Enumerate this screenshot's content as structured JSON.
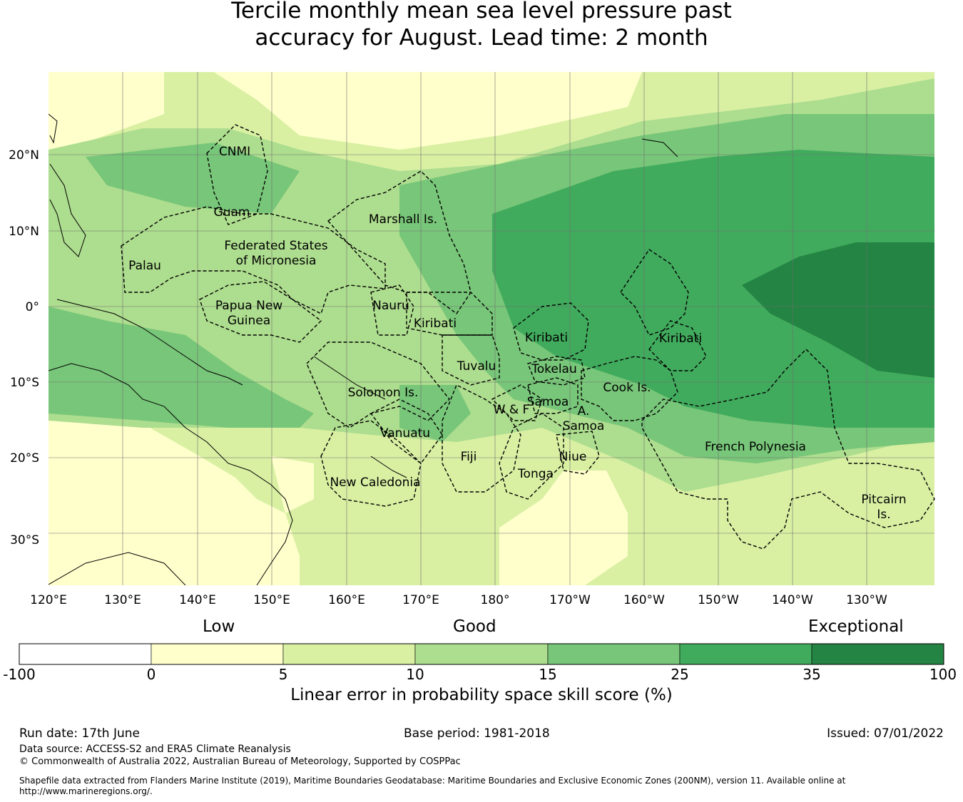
{
  "title": {
    "line1": "Tercile monthly mean sea level pressure past",
    "line2": "accuracy for August. Lead time: 2 month"
  },
  "map": {
    "lat_labels": [
      "20°N",
      "10°N",
      "0°",
      "10°S",
      "20°S",
      "30°S"
    ],
    "lon_labels": [
      "120°E",
      "130°E",
      "140°E",
      "150°E",
      "160°E",
      "170°E",
      "180°",
      "170°W",
      "160°W",
      "150°W",
      "140°W",
      "130°W"
    ],
    "regions": [
      "CNMI",
      "Guam",
      "Marshall Is.",
      "Federated States",
      "of Micronesia",
      "Palau",
      "Papua New",
      "Guinea",
      "Nauru",
      "Kiribati",
      "Kiribati",
      "Kiribati",
      "Tuvalu",
      "Tokelau",
      "Cook Is.",
      "Solomon Is.",
      "W & F",
      "Samoa",
      "A.",
      "Samoa",
      "Vanuatu",
      "Fiji",
      "Niue",
      "Tonga",
      "French Polynesia",
      "New Caledonia",
      "Pitcairn",
      "Is."
    ],
    "colors": {
      "class_0": "#ffffff",
      "class_1": "#ffffcc",
      "class_2": "#d9f0a3",
      "class_3": "#addd8e",
      "class_4": "#78c679",
      "class_5": "#41ab5d",
      "class_6": "#238443"
    }
  },
  "colorbar": {
    "categories": [
      "Low",
      "Good",
      "Exceptional"
    ],
    "ticks": [
      "-100",
      "0",
      "5",
      "10",
      "15",
      "25",
      "35",
      "100"
    ],
    "label": "Linear error in probability space skill score (%)"
  },
  "footer": {
    "run_date": "Run date: 17th June",
    "base_period": "Base period: 1981-2018",
    "issued": "Issued: 07/01/2022",
    "data_source": "Data source: ACCESS-S2 and ERA5 Climate Reanalysis",
    "copyright": "© Commonwealth of Australia 2022, Australian Bureau of Meteorology, Supported by COSPPac",
    "shapefile_line1": "Shapefile data extracted from Flanders Marine Institute (2019), Maritime Boundaries Geodatabase: Maritime Boundaries and Exclusive Economic Zones (200NM), version 11. Available online at",
    "shapefile_line2": "http://www.marineregions.org/."
  }
}
